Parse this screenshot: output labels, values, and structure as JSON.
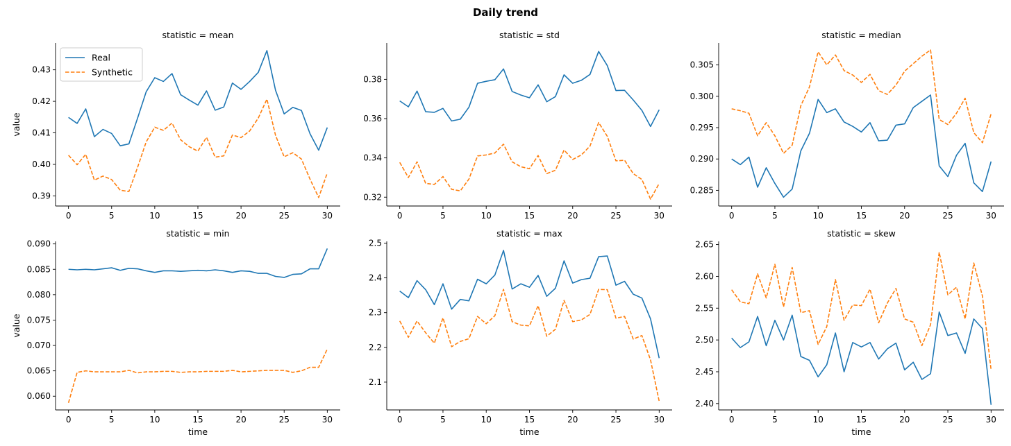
{
  "figure": {
    "title": "Daily trend"
  },
  "legend": {
    "placement": "upper-left of first panel",
    "entries": [
      "Real",
      "Synthetic"
    ]
  },
  "colors": {
    "real": "#1f77b4",
    "synthetic": "#ff7f0e"
  },
  "chart_data": [
    {
      "type": "line",
      "title": "statistic = mean",
      "xlabel": "",
      "ylabel": "value",
      "x": [
        0,
        1,
        2,
        3,
        4,
        5,
        6,
        7,
        8,
        9,
        10,
        11,
        12,
        13,
        14,
        15,
        16,
        17,
        18,
        19,
        20,
        21,
        22,
        23,
        24,
        25,
        26,
        27,
        28,
        29,
        30
      ],
      "xticks": [
        0,
        5,
        10,
        15,
        20,
        25,
        30
      ],
      "xticklabels": [
        "0",
        "5",
        "10",
        "15",
        "20",
        "25",
        "30"
      ],
      "yticks": [
        0.39,
        0.4,
        0.41,
        0.42,
        0.43
      ],
      "yticklabels": [
        "0.39",
        "0.40",
        "0.41",
        "0.42",
        "0.43"
      ],
      "ylim": [
        0.3868,
        0.4385
      ],
      "xlim": [
        -1.5,
        31.5
      ],
      "series": [
        {
          "name": "Real",
          "values": [
            0.4149,
            0.413,
            0.4176,
            0.4088,
            0.4111,
            0.4098,
            0.4059,
            0.4065,
            0.4146,
            0.423,
            0.4275,
            0.4263,
            0.4288,
            0.4221,
            0.4204,
            0.4188,
            0.4233,
            0.4172,
            0.4182,
            0.4258,
            0.4238,
            0.4263,
            0.4292,
            0.4361,
            0.4235,
            0.416,
            0.4181,
            0.4171,
            0.4097,
            0.4045,
            0.4117
          ]
        },
        {
          "name": "Synthetic",
          "values": [
            0.4029,
            0.3999,
            0.4032,
            0.395,
            0.3963,
            0.3952,
            0.3918,
            0.3914,
            0.399,
            0.4071,
            0.4118,
            0.4108,
            0.4131,
            0.4078,
            0.4056,
            0.4042,
            0.4086,
            0.4023,
            0.4027,
            0.4093,
            0.4085,
            0.4106,
            0.4147,
            0.4207,
            0.4092,
            0.4024,
            0.4037,
            0.4017,
            0.3953,
            0.3895,
            0.3973
          ]
        }
      ]
    },
    {
      "type": "line",
      "title": "statistic = std",
      "xlabel": "",
      "ylabel": "",
      "x": [
        0,
        1,
        2,
        3,
        4,
        5,
        6,
        7,
        8,
        9,
        10,
        11,
        12,
        13,
        14,
        15,
        16,
        17,
        18,
        19,
        20,
        21,
        22,
        23,
        24,
        25,
        26,
        27,
        28,
        29,
        30
      ],
      "xticks": [
        0,
        5,
        10,
        15,
        20,
        25,
        30
      ],
      "xticklabels": [
        "0",
        "5",
        "10",
        "15",
        "20",
        "25",
        "30"
      ],
      "yticks": [
        0.32,
        0.34,
        0.36,
        0.38
      ],
      "yticklabels": [
        "0.32",
        "0.34",
        "0.36",
        "0.38"
      ],
      "ylim": [
        0.3155,
        0.3985
      ],
      "xlim": [
        -1.5,
        31.5
      ],
      "series": [
        {
          "name": "Real",
          "values": [
            0.369,
            0.366,
            0.374,
            0.3635,
            0.3632,
            0.3652,
            0.3588,
            0.3597,
            0.3658,
            0.378,
            0.379,
            0.3798,
            0.3853,
            0.3738,
            0.372,
            0.3706,
            0.3772,
            0.3686,
            0.3712,
            0.3823,
            0.378,
            0.3795,
            0.3825,
            0.3942,
            0.387,
            0.3743,
            0.3744,
            0.3695,
            0.3642,
            0.356,
            0.3645
          ]
        },
        {
          "name": "Synthetic",
          "values": [
            0.3377,
            0.33,
            0.338,
            0.327,
            0.3265,
            0.3305,
            0.324,
            0.3232,
            0.3292,
            0.341,
            0.3415,
            0.3425,
            0.347,
            0.338,
            0.3355,
            0.3345,
            0.3412,
            0.332,
            0.3337,
            0.344,
            0.3392,
            0.3415,
            0.346,
            0.358,
            0.351,
            0.3385,
            0.3388,
            0.332,
            0.329,
            0.319,
            0.327
          ]
        }
      ]
    },
    {
      "type": "line",
      "title": "statistic = median",
      "xlabel": "",
      "ylabel": "",
      "x": [
        0,
        1,
        2,
        3,
        4,
        5,
        6,
        7,
        8,
        9,
        10,
        11,
        12,
        13,
        14,
        15,
        16,
        17,
        18,
        19,
        20,
        21,
        22,
        23,
        24,
        25,
        26,
        27,
        28,
        29,
        30
      ],
      "xticks": [
        0,
        5,
        10,
        15,
        20,
        25,
        30
      ],
      "xticklabels": [
        "0",
        "5",
        "10",
        "15",
        "20",
        "25",
        "30"
      ],
      "yticks": [
        0.285,
        0.29,
        0.295,
        0.3,
        0.305
      ],
      "yticklabels": [
        "0.285",
        "0.290",
        "0.295",
        "0.300",
        "0.305"
      ],
      "ylim": [
        0.2825,
        0.3085
      ],
      "xlim": [
        -1.5,
        31.5
      ],
      "series": [
        {
          "name": "Real",
          "values": [
            0.29,
            0.2891,
            0.2903,
            0.2855,
            0.2886,
            0.2861,
            0.2839,
            0.2852,
            0.2913,
            0.2941,
            0.2995,
            0.2974,
            0.298,
            0.2959,
            0.2952,
            0.2943,
            0.2958,
            0.2929,
            0.293,
            0.2954,
            0.2956,
            0.2982,
            0.2992,
            0.3002,
            0.2889,
            0.2872,
            0.2906,
            0.2925,
            0.2862,
            0.2848,
            0.2896
          ]
        },
        {
          "name": "Synthetic",
          "values": [
            0.298,
            0.2977,
            0.2973,
            0.2937,
            0.2958,
            0.2937,
            0.2909,
            0.2922,
            0.2985,
            0.3015,
            0.3071,
            0.305,
            0.3066,
            0.3041,
            0.3034,
            0.3022,
            0.3035,
            0.3009,
            0.3003,
            0.3018,
            0.304,
            0.3052,
            0.3064,
            0.3074,
            0.2963,
            0.2955,
            0.2973,
            0.2997,
            0.2942,
            0.2926,
            0.2972
          ]
        }
      ]
    },
    {
      "type": "line",
      "title": "statistic = min",
      "xlabel": "time",
      "ylabel": "value",
      "x": [
        0,
        1,
        2,
        3,
        4,
        5,
        6,
        7,
        8,
        9,
        10,
        11,
        12,
        13,
        14,
        15,
        16,
        17,
        18,
        19,
        20,
        21,
        22,
        23,
        24,
        25,
        26,
        27,
        28,
        29,
        30
      ],
      "xticks": [
        0,
        5,
        10,
        15,
        20,
        25,
        30
      ],
      "xticklabels": [
        "0",
        "5",
        "10",
        "15",
        "20",
        "25",
        "30"
      ],
      "yticks": [
        0.06,
        0.065,
        0.07,
        0.075,
        0.08,
        0.085,
        0.09
      ],
      "yticklabels": [
        "0.060",
        "0.065",
        "0.070",
        "0.075",
        "0.080",
        "0.085",
        "0.090"
      ],
      "ylim": [
        0.0573,
        0.0905
      ],
      "xlim": [
        -1.5,
        31.5
      ],
      "series": [
        {
          "name": "Real",
          "values": [
            0.085,
            0.0849,
            0.085,
            0.0849,
            0.0851,
            0.0853,
            0.0848,
            0.0852,
            0.0851,
            0.0847,
            0.0844,
            0.0847,
            0.0847,
            0.0846,
            0.0847,
            0.0848,
            0.0847,
            0.0849,
            0.0847,
            0.0844,
            0.0847,
            0.0846,
            0.0842,
            0.0842,
            0.0836,
            0.0834,
            0.084,
            0.0841,
            0.0851,
            0.0851,
            0.0891
          ]
        },
        {
          "name": "Synthetic",
          "values": [
            0.0587,
            0.0647,
            0.065,
            0.0648,
            0.0648,
            0.0648,
            0.0648,
            0.0651,
            0.0646,
            0.0648,
            0.0648,
            0.0649,
            0.0649,
            0.0647,
            0.0648,
            0.0648,
            0.0649,
            0.0649,
            0.0649,
            0.0651,
            0.0648,
            0.0649,
            0.065,
            0.0651,
            0.0651,
            0.0651,
            0.0647,
            0.065,
            0.0657,
            0.0657,
            0.0693
          ]
        }
      ]
    },
    {
      "type": "line",
      "title": "statistic = max",
      "xlabel": "time",
      "ylabel": "",
      "x": [
        0,
        1,
        2,
        3,
        4,
        5,
        6,
        7,
        8,
        9,
        10,
        11,
        12,
        13,
        14,
        15,
        16,
        17,
        18,
        19,
        20,
        21,
        22,
        23,
        24,
        25,
        26,
        27,
        28,
        29,
        30
      ],
      "xticks": [
        0,
        5,
        10,
        15,
        20,
        25,
        30
      ],
      "xticklabels": [
        "0",
        "5",
        "10",
        "15",
        "20",
        "25",
        "30"
      ],
      "yticks": [
        2.1,
        2.2,
        2.3,
        2.4,
        2.5
      ],
      "yticklabels": [
        "2.1",
        "2.2",
        "2.3",
        "2.4",
        "2.5"
      ],
      "ylim": [
        2.02,
        2.505
      ],
      "xlim": [
        -1.5,
        31.5
      ],
      "series": [
        {
          "name": "Real",
          "values": [
            2.362,
            2.343,
            2.392,
            2.366,
            2.323,
            2.383,
            2.31,
            2.338,
            2.334,
            2.396,
            2.383,
            2.408,
            2.479,
            2.368,
            2.383,
            2.373,
            2.407,
            2.347,
            2.37,
            2.449,
            2.385,
            2.395,
            2.399,
            2.461,
            2.463,
            2.379,
            2.39,
            2.353,
            2.342,
            2.282,
            2.169
          ]
        },
        {
          "name": "Synthetic",
          "values": [
            2.276,
            2.229,
            2.276,
            2.242,
            2.212,
            2.285,
            2.202,
            2.217,
            2.225,
            2.289,
            2.268,
            2.291,
            2.367,
            2.274,
            2.264,
            2.262,
            2.32,
            2.232,
            2.252,
            2.335,
            2.274,
            2.279,
            2.295,
            2.367,
            2.366,
            2.284,
            2.289,
            2.224,
            2.234,
            2.164,
            2.045
          ]
        }
      ]
    },
    {
      "type": "line",
      "title": "statistic = skew",
      "xlabel": "time",
      "ylabel": "",
      "x": [
        0,
        1,
        2,
        3,
        4,
        5,
        6,
        7,
        8,
        9,
        10,
        11,
        12,
        13,
        14,
        15,
        16,
        17,
        18,
        19,
        20,
        21,
        22,
        23,
        24,
        25,
        26,
        27,
        28,
        29,
        30
      ],
      "xticks": [
        0,
        5,
        10,
        15,
        20,
        25,
        30
      ],
      "xticklabels": [
        "0",
        "5",
        "10",
        "15",
        "20",
        "25",
        "30"
      ],
      "yticks": [
        2.4,
        2.45,
        2.5,
        2.55,
        2.6,
        2.65
      ],
      "yticklabels": [
        "2.40",
        "2.45",
        "2.50",
        "2.55",
        "2.60",
        "2.65"
      ],
      "ylim": [
        2.39,
        2.655
      ],
      "xlim": [
        -1.5,
        31.5
      ],
      "series": [
        {
          "name": "Real",
          "values": [
            2.503,
            2.488,
            2.497,
            2.537,
            2.491,
            2.531,
            2.5,
            2.539,
            2.474,
            2.468,
            2.442,
            2.461,
            2.511,
            2.45,
            2.496,
            2.489,
            2.496,
            2.47,
            2.486,
            2.495,
            2.453,
            2.465,
            2.438,
            2.447,
            2.544,
            2.507,
            2.511,
            2.479,
            2.533,
            2.518,
            2.398
          ]
        },
        {
          "name": "Synthetic",
          "values": [
            2.579,
            2.56,
            2.557,
            2.604,
            2.566,
            2.619,
            2.552,
            2.614,
            2.543,
            2.546,
            2.493,
            2.521,
            2.595,
            2.531,
            2.555,
            2.554,
            2.58,
            2.527,
            2.558,
            2.581,
            2.533,
            2.528,
            2.491,
            2.524,
            2.638,
            2.571,
            2.583,
            2.533,
            2.621,
            2.569,
            2.453
          ]
        }
      ]
    }
  ]
}
